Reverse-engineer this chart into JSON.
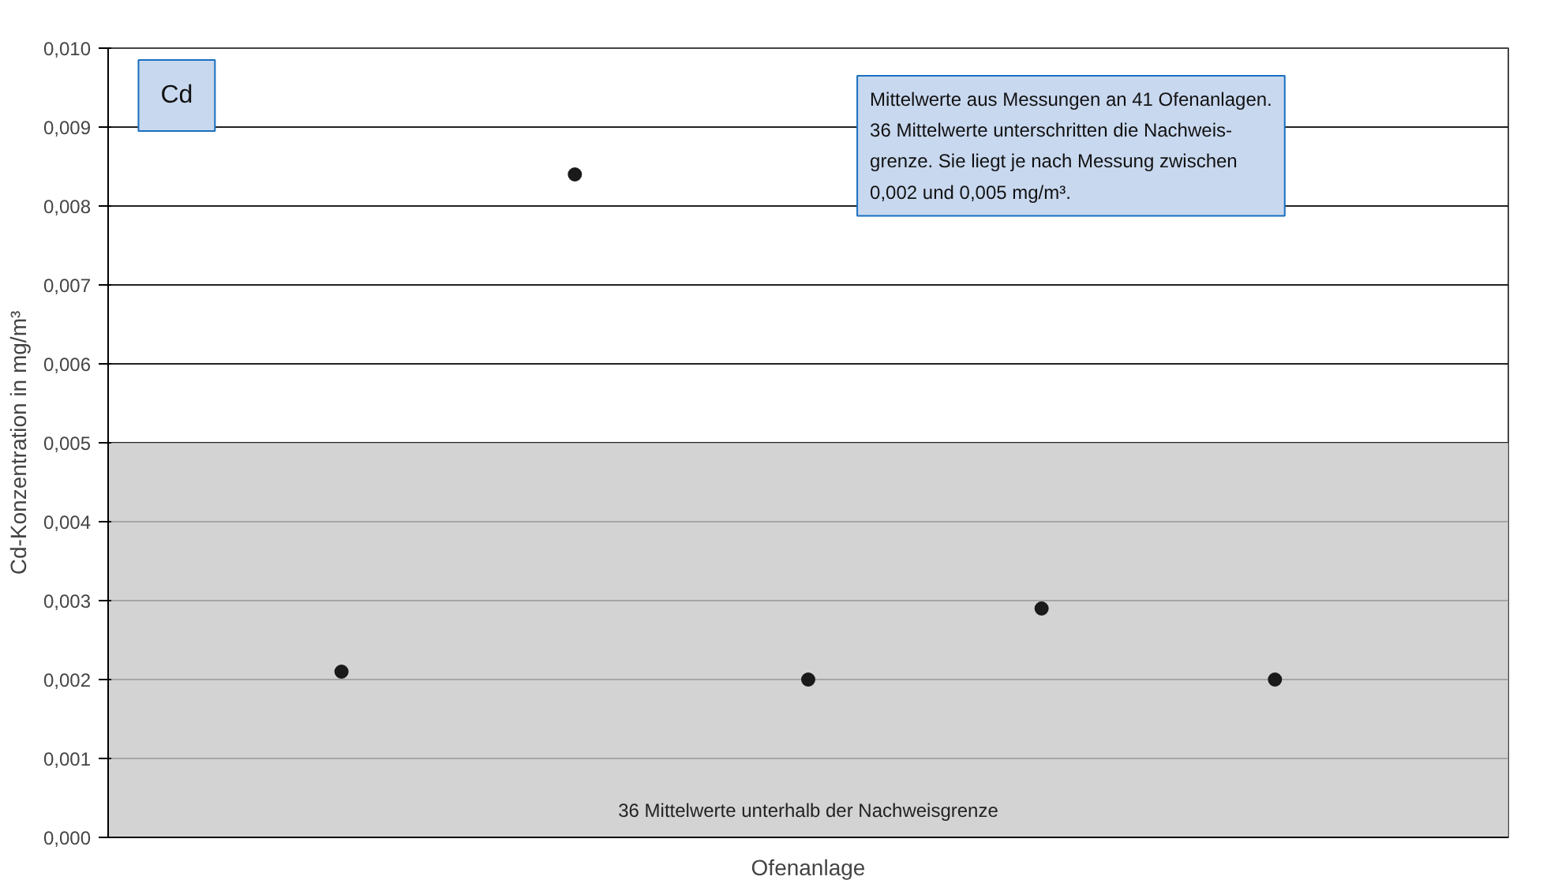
{
  "chart_data": {
    "type": "scatter",
    "xlabel": "Ofenanlage",
    "ylabel": "Cd-Konzentration in mg/m³",
    "categories": [
      null,
      null,
      null,
      null,
      null
    ],
    "series": [
      {
        "color": "#1a1a1a",
        "values": [
          0.0021,
          0.0084,
          0.002,
          0.0029,
          0.002
        ]
      }
    ],
    "ylim": [
      0,
      0.01
    ],
    "yticks": [
      {
        "value": 0,
        "label": "0,000"
      },
      {
        "value": 0.001,
        "label": "0,001"
      },
      {
        "value": 0.002,
        "label": "0,002"
      },
      {
        "value": 0.003,
        "label": "0,003"
      },
      {
        "value": 0.004,
        "label": "0,004"
      },
      {
        "value": 0.005,
        "label": "0,005"
      },
      {
        "value": 0.006,
        "label": "0,006"
      },
      {
        "value": 0.007,
        "label": "0,007"
      },
      {
        "value": 0.008,
        "label": "0,008"
      },
      {
        "value": 0.009,
        "label": "0,009"
      },
      {
        "value": 0.01,
        "label": "0,010"
      }
    ],
    "bands": [
      {
        "axis": "y",
        "from": 0,
        "to": 0.005,
        "label": "36 Mittelwerte unterhalb der Nachweisgrenze",
        "color": "#c8c8c8"
      }
    ],
    "annotations": [
      "Cd",
      "Mittelwerte aus Messungen an 41 Ofenanlagen.\n36 Mittelwerte unterschritten die Nachweis-\ngrenze. Sie liegt je nach Messung zwischen\n0,002 und 0,005 mg/m³."
    ],
    "grid": "y",
    "marker": "circle"
  }
}
